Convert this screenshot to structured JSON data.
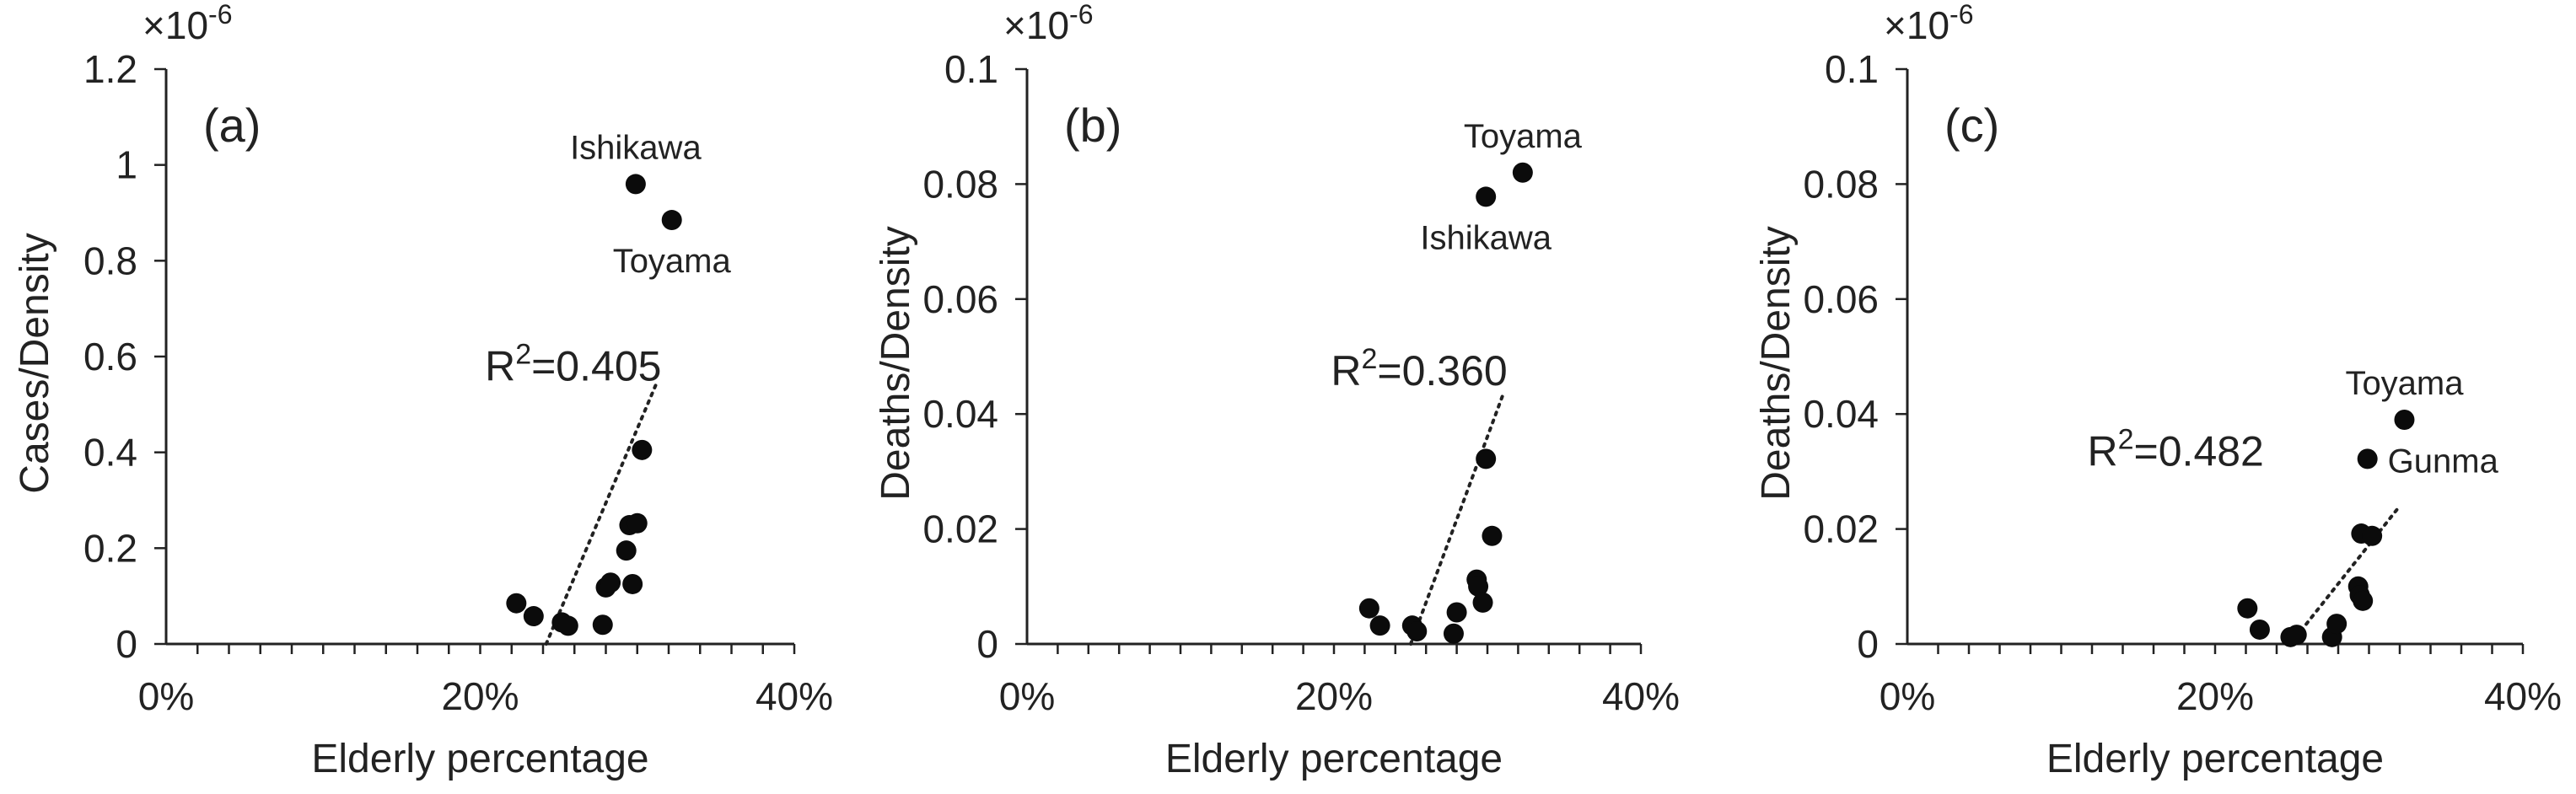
{
  "chart_data": [
    {
      "type": "scatter",
      "panel_label": "(a)",
      "xlabel": "Elderly percentage",
      "ylabel": "Cases/Density",
      "scale_label": "×10-6",
      "scale_base": "×10",
      "scale_exp": "-6",
      "xlim": [
        0,
        40
      ],
      "ylim": [
        0,
        1.2
      ],
      "x_ticks": [
        0,
        20,
        40
      ],
      "x_tick_labels": [
        "0%",
        "20%",
        "40%"
      ],
      "y_ticks": [
        0,
        0.2,
        0.4,
        0.6,
        0.8,
        1.0,
        1.2
      ],
      "y_tick_labels": [
        "0",
        "0.2",
        "0.4",
        "0.6",
        "0.8",
        "1",
        "1.2"
      ],
      "points": [
        {
          "x": 22.3,
          "y": 0.085
        },
        {
          "x": 23.4,
          "y": 0.058
        },
        {
          "x": 25.2,
          "y": 0.045
        },
        {
          "x": 25.6,
          "y": 0.038
        },
        {
          "x": 27.8,
          "y": 0.04
        },
        {
          "x": 28.0,
          "y": 0.118
        },
        {
          "x": 28.3,
          "y": 0.128
        },
        {
          "x": 29.3,
          "y": 0.195
        },
        {
          "x": 29.5,
          "y": 0.248
        },
        {
          "x": 29.7,
          "y": 0.125
        },
        {
          "x": 30.0,
          "y": 0.252
        },
        {
          "x": 30.3,
          "y": 0.405
        },
        {
          "x": 29.9,
          "y": 0.96
        },
        {
          "x": 32.2,
          "y": 0.885
        }
      ],
      "point_labels": [
        {
          "text": "Ishikawa",
          "x": 29.9,
          "y": 0.96,
          "placement": "above"
        },
        {
          "text": "Toyama",
          "x": 32.2,
          "y": 0.885,
          "placement": "below"
        }
      ],
      "trendline": {
        "x": [
          24.2,
          31.3
        ],
        "y": [
          0.0,
          0.55
        ],
        "style": "dotted"
      },
      "r2_base": "R",
      "r2_sup": "2",
      "r2_value": "=0.405",
      "r2_label": "R2=0.405",
      "r2_anchor": {
        "x": 20.3,
        "y": 0.55
      }
    },
    {
      "type": "scatter",
      "panel_label": "(b)",
      "xlabel": "Elderly percentage",
      "ylabel": "Deaths/Density",
      "scale_label": "×10-6",
      "scale_base": "×10",
      "scale_exp": "-6",
      "xlim": [
        0,
        40
      ],
      "ylim": [
        0,
        0.1
      ],
      "x_ticks": [
        0,
        20,
        40
      ],
      "x_tick_labels": [
        "0%",
        "20%",
        "40%"
      ],
      "y_ticks": [
        0,
        0.02,
        0.04,
        0.06,
        0.08,
        0.1
      ],
      "y_tick_labels": [
        "0",
        "0.02",
        "0.04",
        "0.06",
        "0.08",
        "0.1"
      ],
      "points": [
        {
          "x": 22.3,
          "y": 0.0062
        },
        {
          "x": 23.0,
          "y": 0.0032
        },
        {
          "x": 25.1,
          "y": 0.0032
        },
        {
          "x": 25.4,
          "y": 0.0022
        },
        {
          "x": 27.8,
          "y": 0.0018
        },
        {
          "x": 28.0,
          "y": 0.0055
        },
        {
          "x": 29.3,
          "y": 0.0112
        },
        {
          "x": 29.4,
          "y": 0.01
        },
        {
          "x": 29.7,
          "y": 0.0072
        },
        {
          "x": 29.9,
          "y": 0.0322
        },
        {
          "x": 30.3,
          "y": 0.0188
        },
        {
          "x": 29.9,
          "y": 0.0778
        },
        {
          "x": 32.3,
          "y": 0.082
        }
      ],
      "point_labels": [
        {
          "text": "Toyama",
          "x": 32.3,
          "y": 0.082,
          "placement": "above"
        },
        {
          "text": "Ishikawa",
          "x": 29.9,
          "y": 0.0778,
          "placement": "below"
        }
      ],
      "trendline": {
        "x": [
          25.0,
          31.1
        ],
        "y": [
          0.0,
          0.044
        ],
        "style": "dotted"
      },
      "r2_base": "R",
      "r2_sup": "2",
      "r2_value": "=0.360",
      "r2_label": "R2=0.360",
      "r2_anchor": {
        "x": 19.8,
        "y": 0.045
      }
    },
    {
      "type": "scatter",
      "panel_label": "(c)",
      "xlabel": "Elderly percentage",
      "ylabel": "Deaths/Density",
      "scale_label": "×10-6",
      "scale_base": "×10",
      "scale_exp": "-6",
      "xlim": [
        0,
        40
      ],
      "ylim": [
        0,
        0.1
      ],
      "x_ticks": [
        0,
        20,
        40
      ],
      "x_tick_labels": [
        "0%",
        "20%",
        "40%"
      ],
      "y_ticks": [
        0,
        0.02,
        0.04,
        0.06,
        0.08,
        0.1
      ],
      "y_tick_labels": [
        "0",
        "0.02",
        "0.04",
        "0.06",
        "0.08",
        "0.1"
      ],
      "points": [
        {
          "x": 22.1,
          "y": 0.0062
        },
        {
          "x": 22.9,
          "y": 0.0025
        },
        {
          "x": 24.9,
          "y": 0.0012
        },
        {
          "x": 25.3,
          "y": 0.0016
        },
        {
          "x": 27.6,
          "y": 0.0012
        },
        {
          "x": 27.9,
          "y": 0.0035
        },
        {
          "x": 29.3,
          "y": 0.01
        },
        {
          "x": 29.4,
          "y": 0.0085
        },
        {
          "x": 29.6,
          "y": 0.0075
        },
        {
          "x": 29.5,
          "y": 0.0192
        },
        {
          "x": 30.2,
          "y": 0.0188
        },
        {
          "x": 29.9,
          "y": 0.0322
        },
        {
          "x": 32.3,
          "y": 0.039
        }
      ],
      "point_labels": [
        {
          "text": "Toyama",
          "x": 32.3,
          "y": 0.039,
          "placement": "above"
        },
        {
          "text": "Gunma",
          "x": 29.9,
          "y": 0.0322,
          "placement": "right"
        }
      ],
      "trendline": {
        "x": [
          24.9,
          32.0
        ],
        "y": [
          0.0,
          0.024
        ],
        "style": "dotted"
      },
      "r2_base": "R",
      "r2_sup": "2",
      "r2_value": "=0.482",
      "r2_label": "R2=0.482",
      "r2_anchor": {
        "x": 11.7,
        "y": 0.031
      }
    }
  ]
}
